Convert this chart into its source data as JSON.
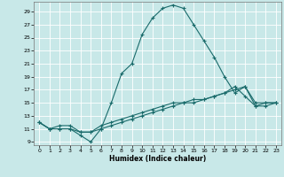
{
  "xlabel": "Humidex (Indice chaleur)",
  "background_color": "#c8e8e8",
  "grid_color": "#ffffff",
  "line_color": "#1a6b6b",
  "xlim": [
    -0.5,
    23.5
  ],
  "ylim": [
    8.5,
    30.5
  ],
  "yticks": [
    9,
    11,
    13,
    15,
    17,
    19,
    21,
    23,
    25,
    27,
    29
  ],
  "xticks": [
    0,
    1,
    2,
    3,
    4,
    5,
    6,
    7,
    8,
    9,
    10,
    11,
    12,
    13,
    14,
    15,
    16,
    17,
    18,
    19,
    20,
    21,
    22,
    23
  ],
  "curve1_y": [
    12.0,
    11.0,
    11.0,
    11.0,
    10.0,
    9.0,
    11.0,
    15.0,
    19.5,
    21.0,
    25.5,
    28.0,
    29.5,
    30.0,
    29.5,
    27.0,
    24.5,
    22.0,
    19.0,
    16.5,
    17.5,
    15.0,
    15.0,
    15.0
  ],
  "curve2_y": [
    12.0,
    11.0,
    11.5,
    11.5,
    10.5,
    10.5,
    11.5,
    12.0,
    12.5,
    13.0,
    13.5,
    14.0,
    14.5,
    15.0,
    15.0,
    15.5,
    15.5,
    16.0,
    16.5,
    17.0,
    17.5,
    14.5,
    15.0,
    15.0
  ],
  "curve3_y": [
    12.0,
    11.0,
    11.0,
    11.0,
    10.5,
    10.5,
    11.0,
    11.5,
    12.0,
    12.5,
    13.0,
    13.5,
    14.0,
    14.5,
    15.0,
    15.0,
    15.5,
    16.0,
    16.5,
    17.5,
    16.0,
    14.5,
    14.5,
    15.0
  ]
}
